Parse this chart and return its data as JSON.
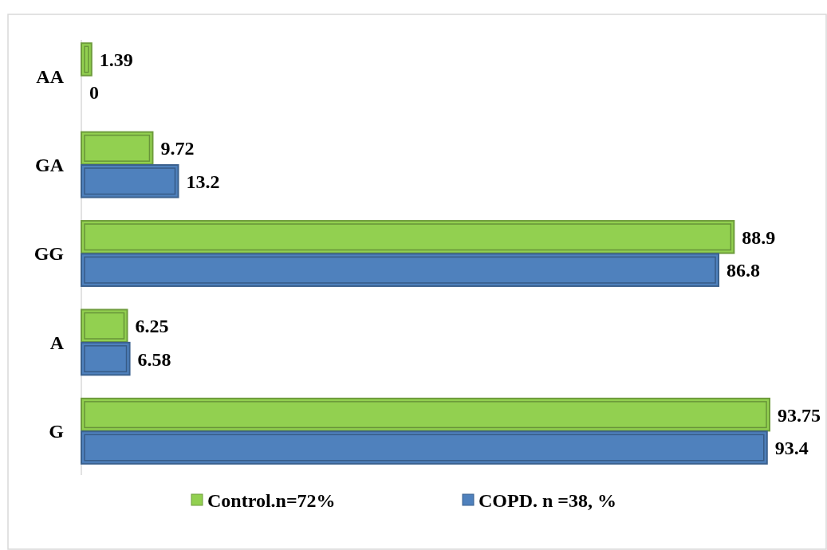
{
  "chart_data": {
    "type": "bar",
    "orientation": "horizontal",
    "categories": [
      "AA",
      "GA",
      "GG",
      "A",
      "G"
    ],
    "series": [
      {
        "name": "Control.n=72%",
        "color": "#92d050",
        "values": [
          1.39,
          9.72,
          88.9,
          6.25,
          93.75
        ]
      },
      {
        "name": "COPD. n =38, %",
        "color": "#4f81bd",
        "values": [
          0,
          13.2,
          86.8,
          6.58,
          93.4
        ]
      }
    ],
    "data_labels": true,
    "legend": "bottom",
    "grid": false
  }
}
